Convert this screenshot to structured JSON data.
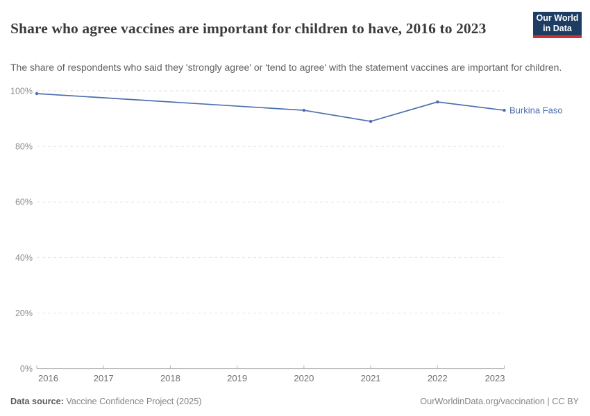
{
  "header": {
    "title": "Share who agree vaccines are important for children to have, 2016 to 2023",
    "subtitle": "The share of respondents who said they 'strongly agree' or 'tend to agree' with the statement vaccines are important for children.",
    "logo": {
      "line1": "Our World",
      "line2": "in Data"
    }
  },
  "chart_data": {
    "type": "line",
    "title": "Share who agree vaccines are important for children to have, 2016 to 2023",
    "xlabel": "",
    "ylabel": "",
    "xlim": [
      2016,
      2023
    ],
    "ylim": [
      0,
      100
    ],
    "x_ticks": [
      2016,
      2017,
      2018,
      2019,
      2020,
      2021,
      2022,
      2023
    ],
    "y_ticks": [
      0,
      20,
      40,
      60,
      80,
      100
    ],
    "y_tick_suffix": "%",
    "grid": "horizontal-dashed",
    "legend_position": "end-of-line-label",
    "series": [
      {
        "name": "Burkina Faso",
        "color": "#4c6eae",
        "points": [
          {
            "x": 2016,
            "y": 99
          },
          {
            "x": 2020,
            "y": 93
          },
          {
            "x": 2021,
            "y": 89
          },
          {
            "x": 2022,
            "y": 96
          },
          {
            "x": 2023,
            "y": 93
          }
        ]
      }
    ]
  },
  "footer": {
    "source_label": "Data source:",
    "source_value": " Vaccine Confidence Project (2025)",
    "attribution": "OurWorldinData.org/vaccination | CC BY"
  },
  "colors": {
    "series_blue": "#4c6eae",
    "logo_navy": "#1d3d63",
    "logo_red": "#cf3235",
    "grid_gray": "#e2e2e2",
    "axis_gray": "#b5b5b5"
  }
}
